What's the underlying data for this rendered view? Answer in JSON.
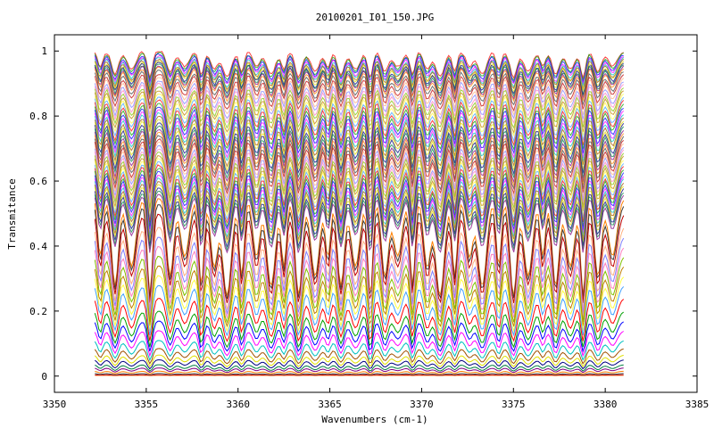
{
  "chart_data": {
    "type": "line",
    "title": "20100201_I01_150.JPG",
    "xlabel": "Wavenumbers (cm-1)",
    "ylabel": "Transmitance",
    "xlim": [
      3350,
      3385
    ],
    "ylim": [
      -0.05,
      1.05
    ],
    "x_ticks": [
      3350,
      3355,
      3360,
      3365,
      3370,
      3375,
      3380,
      3385
    ],
    "y_ticks": [
      0,
      0.2,
      0.4,
      0.6,
      0.8,
      1
    ],
    "x_tick_labels": [
      "3350",
      "3355",
      "3360",
      "3365",
      "3370",
      "3375",
      "3380",
      "3385"
    ],
    "y_tick_labels": [
      "0",
      "0.2",
      "0.4",
      "0.6",
      "0.8",
      "1"
    ],
    "grid": false,
    "legend": "none",
    "x_range": [
      3352.2,
      3381.0
    ],
    "absorption_lines_x": [
      3352.5,
      3353.3,
      3354.2,
      3355.2,
      3356.3,
      3357.1,
      3358.0,
      3358.7,
      3359.4,
      3360.2,
      3361.0,
      3361.8,
      3362.5,
      3363.3,
      3364.2,
      3364.9,
      3365.6,
      3366.4,
      3367.2,
      3368.0,
      3368.7,
      3369.5,
      3370.3,
      3371.0,
      3371.8,
      3372.6,
      3373.3,
      3374.2,
      3375.0,
      3375.8,
      3376.6,
      3377.3,
      3378.1,
      3378.8,
      3379.6,
      3380.4
    ],
    "series_baselines": [
      1.0,
      0.995,
      0.99,
      0.985,
      0.98,
      0.975,
      0.97,
      0.965,
      0.96,
      0.955,
      0.95,
      0.94,
      0.93,
      0.92,
      0.91,
      0.9,
      0.89,
      0.88,
      0.87,
      0.86,
      0.85,
      0.84,
      0.83,
      0.82,
      0.81,
      0.8,
      0.79,
      0.78,
      0.77,
      0.76,
      0.75,
      0.74,
      0.73,
      0.72,
      0.71,
      0.7,
      0.69,
      0.68,
      0.67,
      0.66,
      0.65,
      0.64,
      0.63,
      0.62,
      0.61,
      0.6,
      0.59,
      0.58,
      0.57,
      0.56,
      0.55,
      0.53,
      0.5,
      0.46,
      0.43,
      0.4,
      0.37,
      0.34,
      0.31,
      0.28,
      0.24,
      0.2,
      0.17,
      0.14,
      0.11,
      0.085,
      0.065,
      0.05,
      0.035,
      0.025,
      0.015,
      0.008,
      0.004,
      0.001
    ],
    "series_colors": [
      "#ff0000",
      "#00a000",
      "#0000ff",
      "#ff00ff",
      "#00c0c0",
      "#a05000",
      "#e0e000",
      "#000080",
      "#008040",
      "#800080",
      "#ff8000",
      "#404040",
      "#c00000",
      "#ffb080",
      "#8080ff",
      "#ff80c0",
      "#80c000",
      "#c08000",
      "#ffff40",
      "#40a0ff"
    ]
  }
}
